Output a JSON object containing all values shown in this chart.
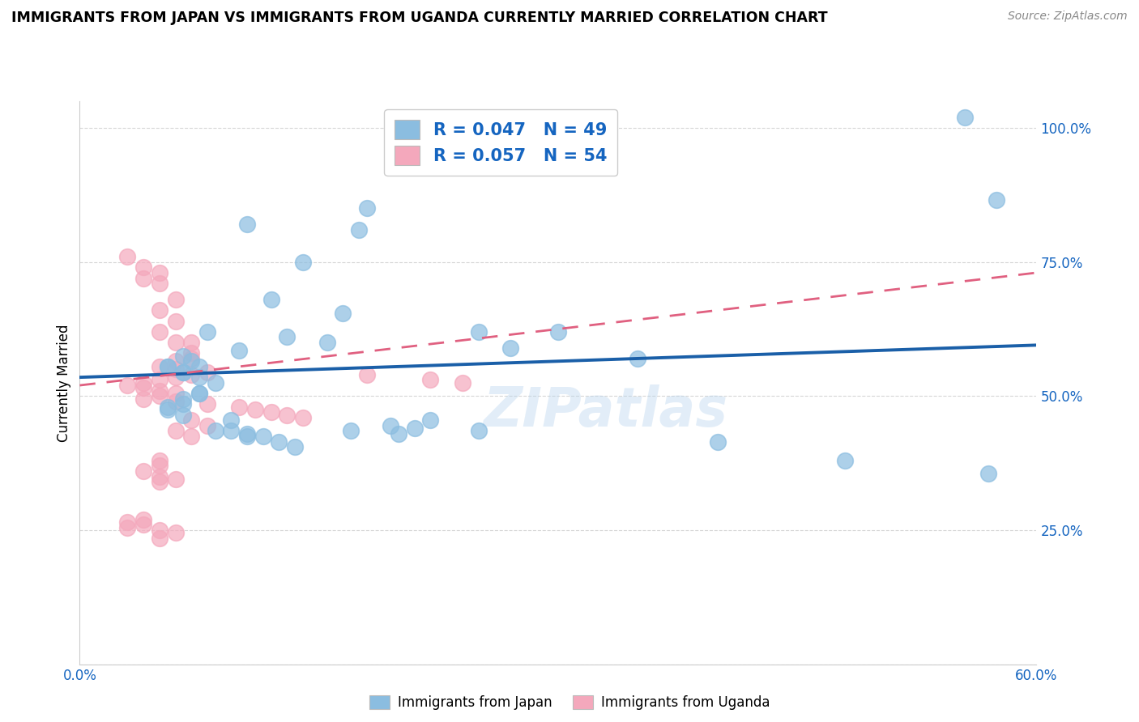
{
  "title": "IMMIGRANTS FROM JAPAN VS IMMIGRANTS FROM UGANDA CURRENTLY MARRIED CORRELATION CHART",
  "source": "Source: ZipAtlas.com",
  "ylabel": "Currently Married",
  "x_min": 0.0,
  "x_max": 0.6,
  "y_min": 0.0,
  "y_max": 1.05,
  "right_yticks": [
    0.25,
    0.5,
    0.75,
    1.0
  ],
  "right_yticklabels": [
    "25.0%",
    "50.0%",
    "75.0%",
    "100.0%"
  ],
  "x_ticks": [
    0.0,
    0.1,
    0.2,
    0.3,
    0.4,
    0.5,
    0.6
  ],
  "x_ticklabels": [
    "0.0%",
    "",
    "",
    "",
    "",
    "",
    "60.0%"
  ],
  "japan_color": "#8BBDE0",
  "uganda_color": "#F4A8BC",
  "japan_line_color": "#1A5FA8",
  "uganda_line_color": "#E06080",
  "japan_R": 0.047,
  "japan_N": 49,
  "uganda_R": 0.057,
  "uganda_N": 54,
  "legend_R_color": "#1565C0",
  "watermark": "ZIPatlas",
  "japan_trend_x0": 0.0,
  "japan_trend_y0": 0.535,
  "japan_trend_x1": 0.6,
  "japan_trend_y1": 0.595,
  "uganda_trend_x0": 0.0,
  "uganda_trend_y0": 0.52,
  "uganda_trend_x1": 0.6,
  "uganda_trend_y1": 0.73,
  "japan_points_x": [
    0.555,
    0.175,
    0.105,
    0.14,
    0.3,
    0.575,
    0.12,
    0.165,
    0.08,
    0.13,
    0.155,
    0.1,
    0.065,
    0.055,
    0.065,
    0.07,
    0.055,
    0.065,
    0.075,
    0.085,
    0.075,
    0.075,
    0.065,
    0.065,
    0.055,
    0.055,
    0.065,
    0.075,
    0.085,
    0.095,
    0.105,
    0.115,
    0.125,
    0.135,
    0.35,
    0.4,
    0.17,
    0.195,
    0.22,
    0.25,
    0.2,
    0.21,
    0.095,
    0.105,
    0.57,
    0.48,
    0.18,
    0.25,
    0.27
  ],
  "japan_points_y": [
    1.02,
    0.81,
    0.82,
    0.75,
    0.62,
    0.865,
    0.68,
    0.655,
    0.62,
    0.61,
    0.6,
    0.585,
    0.575,
    0.555,
    0.545,
    0.565,
    0.555,
    0.545,
    0.535,
    0.525,
    0.505,
    0.505,
    0.495,
    0.485,
    0.48,
    0.475,
    0.465,
    0.555,
    0.435,
    0.435,
    0.425,
    0.425,
    0.415,
    0.405,
    0.57,
    0.415,
    0.435,
    0.445,
    0.455,
    0.435,
    0.43,
    0.44,
    0.455,
    0.43,
    0.355,
    0.38,
    0.85,
    0.62,
    0.59
  ],
  "uganda_points_x": [
    0.03,
    0.04,
    0.05,
    0.04,
    0.05,
    0.06,
    0.05,
    0.06,
    0.05,
    0.07,
    0.06,
    0.07,
    0.07,
    0.06,
    0.05,
    0.06,
    0.08,
    0.07,
    0.06,
    0.05,
    0.04,
    0.03,
    0.04,
    0.05,
    0.06,
    0.05,
    0.04,
    0.06,
    0.08,
    0.1,
    0.11,
    0.12,
    0.13,
    0.14,
    0.07,
    0.08,
    0.06,
    0.07,
    0.18,
    0.22,
    0.24,
    0.05,
    0.05,
    0.04,
    0.05,
    0.06,
    0.05,
    0.04,
    0.03,
    0.04,
    0.03,
    0.05,
    0.06,
    0.05
  ],
  "uganda_points_y": [
    0.76,
    0.74,
    0.73,
    0.72,
    0.71,
    0.68,
    0.66,
    0.64,
    0.62,
    0.6,
    0.6,
    0.58,
    0.57,
    0.565,
    0.555,
    0.55,
    0.545,
    0.54,
    0.535,
    0.53,
    0.525,
    0.52,
    0.515,
    0.51,
    0.505,
    0.5,
    0.495,
    0.49,
    0.485,
    0.48,
    0.475,
    0.47,
    0.465,
    0.46,
    0.455,
    0.445,
    0.435,
    0.425,
    0.54,
    0.53,
    0.525,
    0.38,
    0.37,
    0.36,
    0.35,
    0.345,
    0.34,
    0.27,
    0.265,
    0.26,
    0.255,
    0.25,
    0.245,
    0.235
  ]
}
